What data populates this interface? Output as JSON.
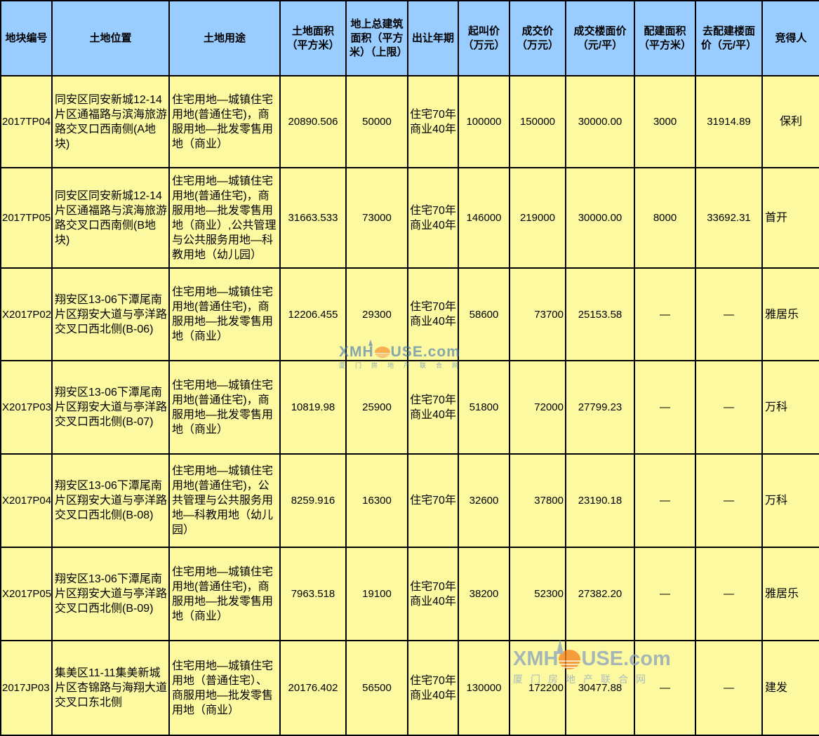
{
  "table": {
    "columns": [
      "地块编号",
      "土地位置",
      "土地用途",
      "土地面积（平方米）",
      "地上总建筑面积（平方米）（上限）",
      "出让年期",
      "起叫价（万元）",
      "成交价（万元）",
      "成交楼面价（元/平）",
      "配建面积（平方米）",
      "去配建楼面价（元/平）",
      "竞得人"
    ],
    "rows": [
      {
        "plot_id": "2017TP04",
        "location": "同安区同安新城12-14片区通福路与滨海旅游路交叉口西南侧(A地块)",
        "land_use": "住宅用地—城镇住宅用地(普通住宅)，商服用地—批发零售用地（商业）",
        "land_area": "20890.506",
        "building_area": "50000",
        "tenure": [
          "住宅70年",
          "商业40年"
        ],
        "start_price": "100000",
        "deal_price": "150000",
        "deal_price_align": "center",
        "floor_price": "30000.00",
        "allocated_area": "3000",
        "net_floor_price": "31914.89",
        "winner": "保利",
        "winner_align": "center"
      },
      {
        "plot_id": "2017TP05",
        "location": "同安区同安新城12-14片区通福路与滨海旅游路交叉口西南侧(B地块)",
        "land_use": "住宅用地—城镇住宅用地(普通住宅)，商服用地—批发零售用地（商业）,公共管理与公共服务用地—科教用地（幼儿园）",
        "land_area": "31663.533",
        "building_area": "73000",
        "tenure": [
          "住宅70年",
          "商业40年"
        ],
        "start_price": "146000",
        "deal_price": "219000",
        "deal_price_align": "center",
        "floor_price": "30000.00",
        "allocated_area": "8000",
        "net_floor_price": "33692.31",
        "winner": "首开",
        "winner_align": "left"
      },
      {
        "plot_id": "X2017P02",
        "location": "翔安区13-06下潭尾南片区翔安大道与亭洋路交叉口西北侧(B-06)",
        "land_use": "住宅用地—城镇住宅用地(普通住宅)，商服用地—批发零售用地（商业）",
        "land_area": "12206.455",
        "building_area": "29300",
        "tenure": [
          "住宅70年",
          "商业40年"
        ],
        "start_price": "58600",
        "deal_price": "73700",
        "deal_price_align": "right",
        "floor_price": "25153.58",
        "allocated_area": "—",
        "net_floor_price": "—",
        "winner": "雅居乐",
        "winner_align": "left"
      },
      {
        "plot_id": "X2017P03",
        "location": "翔安区13-06下潭尾南片区翔安大道与亭洋路交叉口西北侧(B-07)",
        "land_use": "住宅用地—城镇住宅用地(普通住宅)，商服用地—批发零售用地（商业）",
        "land_area": "10819.98",
        "building_area": "25900",
        "tenure": [
          "住宅70年",
          "商业40年"
        ],
        "start_price": "51800",
        "deal_price": "72000",
        "deal_price_align": "right",
        "floor_price": "27799.23",
        "allocated_area": "—",
        "net_floor_price": "—",
        "winner": "万科",
        "winner_align": "left"
      },
      {
        "plot_id": "X2017P04",
        "location": "翔安区13-06下潭尾南片区翔安大道与亭洋路交叉口西北侧(B-08)",
        "land_use": "住宅用地—城镇住宅用地(普通住宅)，公共管理与公共服务用地—科教用地（幼儿园）",
        "land_area": "8259.916",
        "building_area": "16300",
        "tenure": [
          "住宅70年"
        ],
        "start_price": "32600",
        "deal_price": "37800",
        "deal_price_align": "right",
        "floor_price": "23190.18",
        "allocated_area": "—",
        "net_floor_price": "—",
        "winner": "万科",
        "winner_align": "left"
      },
      {
        "plot_id": "X2017P05",
        "location": "翔安区13-06下潭尾南片区翔安大道与亭洋路交叉口西北侧(B-09)",
        "land_use": "住宅用地—城镇住宅用地(普通住宅)，商服用地—批发零售用地（商业）",
        "land_area": "7963.518",
        "building_area": "19100",
        "tenure": [
          "住宅70年",
          "商业40年"
        ],
        "start_price": "38200",
        "deal_price": "52300",
        "deal_price_align": "right",
        "floor_price": "27382.20",
        "allocated_area": "—",
        "net_floor_price": "—",
        "winner": "雅居乐",
        "winner_align": "left"
      },
      {
        "plot_id": "2017JP03",
        "location": "集美区11-11集美新城片区杏锦路与海翔大道交叉口东北侧",
        "land_use": "住宅用地—城镇住宅用地（普通住宅）、商服用地—批发零售用地（商业）",
        "land_area": "20176.402",
        "building_area": "56500",
        "tenure": [
          "住宅70年",
          "商业40年"
        ],
        "start_price": "130000",
        "deal_price": "172200",
        "deal_price_align": "right",
        "floor_price": "30477.88",
        "allocated_area": "—",
        "net_floor_price": "—",
        "winner": "建发",
        "winner_align": "left"
      }
    ]
  },
  "watermark": {
    "brand_prefix": "XMH",
    "brand_suffix": "USE.com",
    "brand_full": "XMHOUSE.com",
    "subtitle": "厦门房地产联合网"
  },
  "colors": {
    "header_bg": "#99CCFF",
    "body_bg": "#FCF9A0",
    "grid": "#000000",
    "watermark_blue": "#8CA4BC",
    "watermark_orange": "#F5821F"
  }
}
